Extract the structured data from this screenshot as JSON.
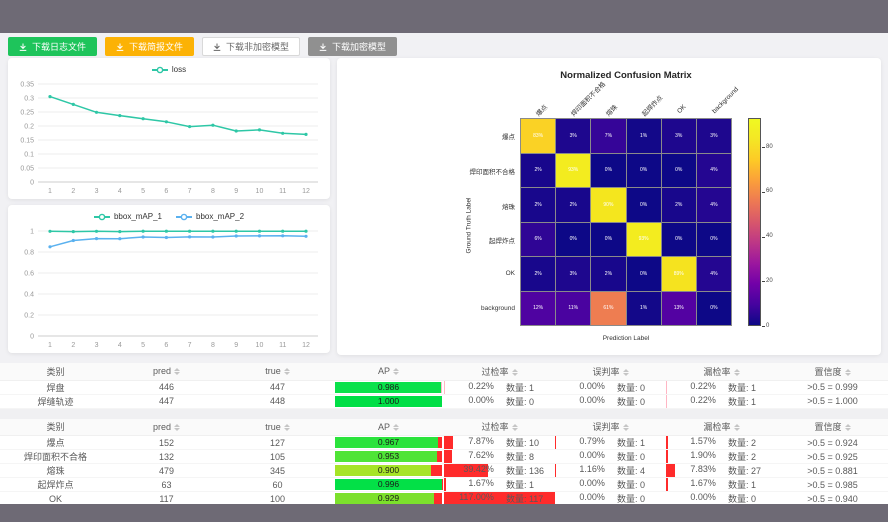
{
  "toolbar": {
    "buttons": [
      {
        "name": "download-log-button",
        "label": "下载日志文件",
        "bg": "#1ec45b",
        "fg": "#ffffff",
        "plain": false
      },
      {
        "name": "download-report-button",
        "label": "下载简报文件",
        "bg": "#fcb205",
        "fg": "#ffffff",
        "plain": false
      },
      {
        "name": "download-plain-model-button",
        "label": "下载非加密模型",
        "bg": "#ffffff",
        "fg": "#666666",
        "plain": true
      },
      {
        "name": "download-encrypted-model-button",
        "label": "下载加密模型",
        "bg": "#909090",
        "fg": "#ffffff",
        "plain": false
      }
    ]
  },
  "chart_data": [
    {
      "type": "line",
      "title": "",
      "x": [
        1,
        2,
        3,
        4,
        5,
        6,
        7,
        8,
        9,
        10,
        11,
        12
      ],
      "series": [
        {
          "name": "loss",
          "color": "#2ec7a6",
          "values": [
            0.305,
            0.277,
            0.249,
            0.237,
            0.226,
            0.215,
            0.198,
            0.203,
            0.182,
            0.186,
            0.174,
            0.17
          ]
        }
      ],
      "ylim": [
        0,
        0.35
      ],
      "yticks": [
        "0",
        "0.05",
        "0.1",
        "0.15",
        "0.2",
        "0.25",
        "0.3",
        "0.35"
      ],
      "xlabel": "",
      "ylabel": "",
      "grid": true,
      "legend_position": "top-center"
    },
    {
      "type": "line",
      "title": "",
      "x": [
        1,
        2,
        3,
        4,
        5,
        6,
        7,
        8,
        9,
        10,
        11,
        12
      ],
      "series": [
        {
          "name": "bbox_mAP_1",
          "color": "#2ec7a6",
          "values": [
            0.997,
            0.994,
            0.997,
            0.994,
            0.998,
            0.998,
            0.998,
            0.998,
            0.998,
            0.998,
            0.998,
            0.998
          ]
        },
        {
          "name": "bbox_mAP_2",
          "color": "#5ab1ef",
          "values": [
            0.85,
            0.91,
            0.928,
            0.927,
            0.943,
            0.938,
            0.944,
            0.943,
            0.952,
            0.953,
            0.954,
            0.95
          ]
        }
      ],
      "ylim": [
        0,
        1
      ],
      "yticks": [
        "0",
        "0.2",
        "0.4",
        "0.6",
        "0.8",
        "1"
      ],
      "xlabel": "",
      "ylabel": "",
      "grid": true,
      "legend_position": "top-center"
    },
    {
      "type": "heatmap",
      "title": "Normalized Confusion Matrix",
      "xlabel": "Prediction Label",
      "ylabel": "Ground Truth Label",
      "categories": [
        "爆点",
        "焊印面积不合格",
        "熔珠",
        "起焊炸点",
        "OK",
        "background"
      ],
      "values_percent": [
        [
          83,
          3,
          7,
          1,
          3,
          3
        ],
        [
          2,
          93,
          0,
          0,
          0,
          4
        ],
        [
          2,
          2,
          90,
          0,
          2,
          4
        ],
        [
          6,
          0,
          0,
          93,
          0,
          0
        ],
        [
          2,
          3,
          2,
          0,
          89,
          4
        ],
        [
          12,
          11,
          61,
          1,
          13,
          0
        ]
      ],
      "colormap": "plasma",
      "colorbar_ticks": [
        0,
        20,
        40,
        60,
        80
      ],
      "vmax": 93
    }
  ],
  "count_label": "数量",
  "tables": [
    {
      "headers": [
        "类别",
        "pred",
        "true",
        "AP",
        "过检率",
        "误判率",
        "漏检率",
        "置信度"
      ],
      "bar_red": "#ffb6c4",
      "rows": [
        {
          "name": "焊盘",
          "pred": "446",
          "true": "447",
          "ap": 0.986,
          "ap_text": "0.986",
          "ap_color": "#0ae14b",
          "rates": [
            {
              "pct": "0.22%",
              "count": "1",
              "w": 0.22
            },
            {
              "pct": "0.00%",
              "count": "0",
              "w": 0
            },
            {
              "pct": "0.22%",
              "count": "1",
              "w": 0.22
            }
          ],
          "conf": ">0.5 = 0.999"
        },
        {
          "name": "焊缝轨迹",
          "pred": "447",
          "true": "448",
          "ap": 1.0,
          "ap_text": "1.000",
          "ap_color": "#00df46",
          "rates": [
            {
              "pct": "0.00%",
              "count": "0",
              "w": 0
            },
            {
              "pct": "0.00%",
              "count": "0",
              "w": 0
            },
            {
              "pct": "0.22%",
              "count": "1",
              "w": 0.22
            }
          ],
          "conf": ">0.5 = 1.000"
        }
      ]
    },
    {
      "headers": [
        "类别",
        "pred",
        "true",
        "AP",
        "过检率",
        "误判率",
        "漏检率",
        "置信度"
      ],
      "bar_red": "#ff2b2b",
      "rows": [
        {
          "name": "爆点",
          "pred": "152",
          "true": "127",
          "ap": 0.967,
          "ap_text": "0.967",
          "ap_color": "#2be33c",
          "rates": [
            {
              "pct": "7.87%",
              "count": "10",
              "w": 7.87
            },
            {
              "pct": "0.79%",
              "count": "1",
              "w": 0.79
            },
            {
              "pct": "1.57%",
              "count": "2",
              "w": 1.57
            }
          ],
          "conf": ">0.5 = 0.924"
        },
        {
          "name": "焊印面积不合格",
          "pred": "132",
          "true": "105",
          "ap": 0.953,
          "ap_text": "0.953",
          "ap_color": "#4fe436",
          "rates": [
            {
              "pct": "7.62%",
              "count": "8",
              "w": 7.62
            },
            {
              "pct": "0.00%",
              "count": "0",
              "w": 0
            },
            {
              "pct": "1.90%",
              "count": "2",
              "w": 1.9
            }
          ],
          "conf": ">0.5 = 0.925"
        },
        {
          "name": "熔珠",
          "pred": "479",
          "true": "345",
          "ap": 0.9,
          "ap_text": "0.900",
          "ap_color": "#a6e426",
          "rates": [
            {
              "pct": "39.42%",
              "count": "136",
              "w": 39.42
            },
            {
              "pct": "1.16%",
              "count": "4",
              "w": 1.16
            },
            {
              "pct": "7.83%",
              "count": "27",
              "w": 7.83
            }
          ],
          "conf": ">0.5 = 0.881"
        },
        {
          "name": "起焊炸点",
          "pred": "63",
          "true": "60",
          "ap": 0.996,
          "ap_text": "0.996",
          "ap_color": "#03e047",
          "rates": [
            {
              "pct": "1.67%",
              "count": "1",
              "w": 1.67
            },
            {
              "pct": "0.00%",
              "count": "0",
              "w": 0
            },
            {
              "pct": "1.67%",
              "count": "1",
              "w": 1.67
            }
          ],
          "conf": ">0.5 = 0.985"
        },
        {
          "name": "OK",
          "pred": "117",
          "true": "100",
          "ap": 0.929,
          "ap_text": "0.929",
          "ap_color": "#7ce02c",
          "rates": [
            {
              "pct": "117.00%",
              "count": "117",
              "w": 117
            },
            {
              "pct": "0.00%",
              "count": "0",
              "w": 0
            },
            {
              "pct": "0.00%",
              "count": "0",
              "w": 0
            }
          ],
          "conf": ">0.5 = 0.940"
        }
      ]
    }
  ]
}
